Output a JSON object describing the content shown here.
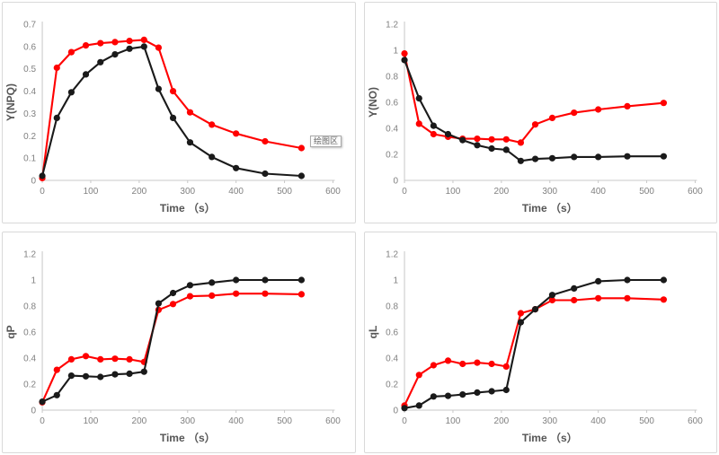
{
  "annotation": {
    "text": "绘图区"
  },
  "colors": {
    "red_series": "#ff0000",
    "black_series": "#1a1a1a",
    "axis_line": "#c8c8c8",
    "tick_label": "#7f7f7f",
    "axis_title": "#555555",
    "panel_border": "#d9d9d9",
    "background": "#ffffff"
  },
  "chart_data": [
    {
      "type": "line",
      "id": "y-npq",
      "title": "",
      "ylabel": "Y(NPQ)",
      "xlabel": "Time （s）",
      "xlim": [
        0,
        600
      ],
      "ylim": [
        0,
        0.7
      ],
      "xticks": [
        0,
        100,
        200,
        300,
        400,
        500,
        600
      ],
      "yticks": [
        0,
        0.1,
        0.2,
        0.3,
        0.4,
        0.5,
        0.6,
        0.7
      ],
      "grid": false,
      "legend": "none",
      "x": [
        0,
        30,
        60,
        90,
        120,
        150,
        180,
        210,
        240,
        270,
        305,
        350,
        400,
        460,
        535
      ],
      "series": [
        {
          "name": "red",
          "color": "#ff0000",
          "values": [
            0.01,
            0.505,
            0.575,
            0.605,
            0.615,
            0.62,
            0.625,
            0.63,
            0.595,
            0.4,
            0.305,
            0.25,
            0.21,
            0.175,
            0.145
          ]
        },
        {
          "name": "black",
          "color": "#1a1a1a",
          "values": [
            0.02,
            0.28,
            0.395,
            0.475,
            0.53,
            0.565,
            0.59,
            0.6,
            0.41,
            0.28,
            0.17,
            0.105,
            0.055,
            0.03,
            0.02
          ]
        }
      ]
    },
    {
      "type": "line",
      "id": "y-no",
      "title": "",
      "ylabel": "Y(NO)",
      "xlabel": "Time （s）",
      "xlim": [
        0,
        600
      ],
      "ylim": [
        0,
        1.2
      ],
      "xticks": [
        0,
        100,
        200,
        300,
        400,
        500,
        600
      ],
      "yticks": [
        0,
        0.2,
        0.4,
        0.6,
        0.8,
        1,
        1.2
      ],
      "grid": false,
      "legend": "none",
      "x": [
        0,
        30,
        60,
        90,
        120,
        150,
        180,
        210,
        240,
        270,
        305,
        350,
        400,
        460,
        535
      ],
      "series": [
        {
          "name": "red",
          "color": "#ff0000",
          "values": [
            0.975,
            0.435,
            0.355,
            0.335,
            0.32,
            0.32,
            0.315,
            0.315,
            0.29,
            0.43,
            0.48,
            0.52,
            0.545,
            0.57,
            0.595
          ]
        },
        {
          "name": "black",
          "color": "#1a1a1a",
          "values": [
            0.925,
            0.63,
            0.42,
            0.355,
            0.31,
            0.27,
            0.245,
            0.235,
            0.15,
            0.165,
            0.17,
            0.18,
            0.18,
            0.185,
            0.185
          ]
        }
      ]
    },
    {
      "type": "line",
      "id": "qp",
      "title": "",
      "ylabel": "qP",
      "xlabel": "Time （s）",
      "xlim": [
        0,
        600
      ],
      "ylim": [
        0,
        1.2
      ],
      "xticks": [
        0,
        100,
        200,
        300,
        400,
        500,
        600
      ],
      "yticks": [
        0,
        0.2,
        0.4,
        0.6,
        0.8,
        1,
        1.2
      ],
      "grid": false,
      "legend": "none",
      "x": [
        0,
        30,
        60,
        90,
        120,
        150,
        180,
        210,
        240,
        270,
        305,
        350,
        400,
        460,
        535
      ],
      "series": [
        {
          "name": "red",
          "color": "#ff0000",
          "values": [
            0.06,
            0.31,
            0.39,
            0.415,
            0.39,
            0.395,
            0.39,
            0.37,
            0.77,
            0.815,
            0.875,
            0.88,
            0.895,
            0.895,
            0.89
          ]
        },
        {
          "name": "black",
          "color": "#1a1a1a",
          "values": [
            0.065,
            0.115,
            0.265,
            0.26,
            0.255,
            0.275,
            0.28,
            0.295,
            0.82,
            0.9,
            0.96,
            0.98,
            1.0,
            1.0,
            1.0
          ]
        }
      ]
    },
    {
      "type": "line",
      "id": "ql",
      "title": "",
      "ylabel": "qL",
      "xlabel": "Time （s）",
      "xlim": [
        0,
        600
      ],
      "ylim": [
        0,
        1.2
      ],
      "xticks": [
        0,
        100,
        200,
        300,
        400,
        500,
        600
      ],
      "yticks": [
        0,
        0.2,
        0.4,
        0.6,
        0.8,
        1,
        1.2
      ],
      "grid": false,
      "legend": "none",
      "x": [
        0,
        30,
        60,
        90,
        120,
        150,
        180,
        210,
        240,
        270,
        305,
        350,
        400,
        460,
        535
      ],
      "series": [
        {
          "name": "red",
          "color": "#ff0000",
          "values": [
            0.035,
            0.27,
            0.345,
            0.38,
            0.355,
            0.365,
            0.355,
            0.335,
            0.745,
            0.775,
            0.845,
            0.845,
            0.86,
            0.86,
            0.85
          ]
        },
        {
          "name": "black",
          "color": "#1a1a1a",
          "values": [
            0.015,
            0.035,
            0.105,
            0.11,
            0.12,
            0.135,
            0.145,
            0.155,
            0.675,
            0.775,
            0.885,
            0.935,
            0.99,
            1.0,
            1.0
          ]
        }
      ]
    }
  ]
}
